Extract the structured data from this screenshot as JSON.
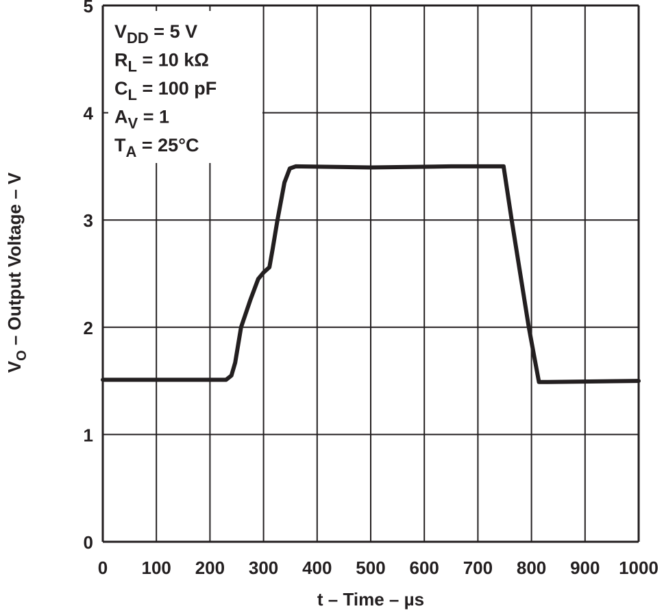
{
  "chart_data": {
    "type": "line",
    "title": "",
    "xlabel": "t – Time – µs",
    "ylabel_main": "V",
    "ylabel_sub": "O",
    "ylabel_rest": " – Output Voltage – V",
    "xlim": [
      0,
      1000
    ],
    "ylim": [
      0,
      5
    ],
    "grid": true,
    "xticks": [
      "0",
      "100",
      "200",
      "300",
      "400",
      "500",
      "600",
      "700",
      "800",
      "900",
      "1000"
    ],
    "yticks": [
      "0",
      "1",
      "2",
      "3",
      "4",
      "5"
    ],
    "annotations": [
      {
        "main": "V",
        "sub": "DD",
        "rest": " = 5 V"
      },
      {
        "main": "R",
        "sub": "L",
        "rest": " = 10 kΩ"
      },
      {
        "main": "C",
        "sub": "L",
        "rest": " = 100 pF"
      },
      {
        "main": "A",
        "sub": "V",
        "rest": " = 1"
      },
      {
        "main": "T",
        "sub": "A",
        "rest": " = 25°C"
      }
    ],
    "series": [
      {
        "color": "#231f20",
        "x": [
          0,
          230,
          240,
          247,
          258,
          275,
          290,
          300,
          311,
          317,
          326,
          339,
          349,
          360,
          500,
          650,
          748,
          763,
          795,
          814,
          830,
          1000
        ],
        "y": [
          1.51,
          1.51,
          1.55,
          1.67,
          2.0,
          2.25,
          2.45,
          2.51,
          2.56,
          2.73,
          3.0,
          3.35,
          3.48,
          3.5,
          3.49,
          3.5,
          3.5,
          3.0,
          2.0,
          1.49,
          1.49,
          1.5
        ]
      }
    ]
  }
}
